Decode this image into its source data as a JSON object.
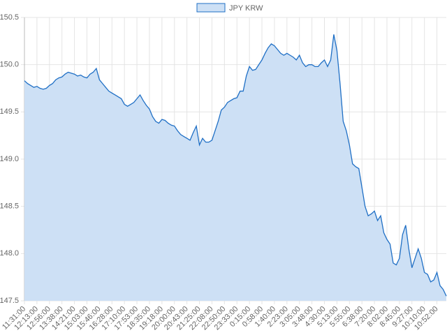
{
  "chart_data": {
    "type": "line",
    "fill_area": true,
    "grid": true,
    "legend": "top",
    "categories": [
      "11:31:00",
      null,
      null,
      null,
      "12:13:00",
      null,
      null,
      null,
      "12:56:00",
      null,
      null,
      null,
      "13:38:00",
      null,
      null,
      null,
      "14:21:00",
      null,
      null,
      null,
      "15:03:00",
      null,
      null,
      null,
      "15:46:00",
      null,
      null,
      null,
      "16:28:00",
      null,
      null,
      null,
      "17:10:00",
      null,
      null,
      null,
      "17:53:00",
      null,
      null,
      null,
      "18:35:00",
      null,
      null,
      null,
      "19:18:00",
      null,
      null,
      null,
      "20:00:00",
      null,
      null,
      null,
      "20:43:00",
      null,
      null,
      null,
      "21:25:00",
      null,
      null,
      null,
      "22:08:00",
      null,
      null,
      null,
      "22:50:00",
      null,
      null,
      null,
      "23:33:00",
      null,
      null,
      null,
      "0:15:00",
      null,
      null,
      null,
      "0:58:00",
      null,
      null,
      null,
      "1:40:00",
      null,
      null,
      null,
      "2:23:00",
      null,
      null,
      null,
      "3:05:00",
      null,
      null,
      null,
      "3:48:00",
      null,
      null,
      null,
      "4:30:00",
      null,
      null,
      null,
      "5:13:00",
      null,
      null,
      null,
      "5:55:00",
      null,
      null,
      null,
      "6:38:00",
      null,
      null,
      null,
      "7:20:00",
      null,
      null,
      null,
      "8:02:00",
      null,
      null,
      null,
      "8:45:00",
      null,
      null,
      null,
      "9:27:00",
      null,
      null,
      null,
      "10:10:00",
      null,
      null,
      null,
      "10:52:00",
      null,
      null,
      null
    ],
    "series": [
      {
        "name": "JPY KRW",
        "color": "#1f6fc5",
        "fill": "#cde0f5",
        "values": [
          149.83,
          149.8,
          149.78,
          149.76,
          149.77,
          149.75,
          149.74,
          149.75,
          149.78,
          149.8,
          149.84,
          149.86,
          149.87,
          149.9,
          149.92,
          149.91,
          149.9,
          149.88,
          149.89,
          149.87,
          149.86,
          149.9,
          149.92,
          149.96,
          149.84,
          149.8,
          149.76,
          149.72,
          149.7,
          149.68,
          149.66,
          149.64,
          149.58,
          149.56,
          149.58,
          149.6,
          149.64,
          149.68,
          149.62,
          149.57,
          149.53,
          149.45,
          149.4,
          149.38,
          149.42,
          149.41,
          149.38,
          149.36,
          149.35,
          149.3,
          149.26,
          149.24,
          149.22,
          149.2,
          149.28,
          149.35,
          149.15,
          149.22,
          149.18,
          149.18,
          149.2,
          149.3,
          149.4,
          149.52,
          149.55,
          149.6,
          149.62,
          149.64,
          149.65,
          149.72,
          149.72,
          149.88,
          149.98,
          149.94,
          149.95,
          150.0,
          150.05,
          150.12,
          150.18,
          150.22,
          150.2,
          150.16,
          150.12,
          150.1,
          150.12,
          150.1,
          150.08,
          150.05,
          150.1,
          150.02,
          149.98,
          150.0,
          150.0,
          149.98,
          149.98,
          150.02,
          150.05,
          149.98,
          150.05,
          150.32,
          150.15,
          149.8,
          149.4,
          149.3,
          149.15,
          148.95,
          148.92,
          148.9,
          148.7,
          148.5,
          148.4,
          148.42,
          148.45,
          148.35,
          148.4,
          148.22,
          148.15,
          148.1,
          147.9,
          147.88,
          147.95,
          148.2,
          148.3,
          148.05,
          147.85,
          147.95,
          148.05,
          147.95,
          147.8,
          147.78,
          147.7,
          147.72,
          147.8,
          147.66,
          147.62,
          147.55
        ]
      }
    ],
    "ylim": [
      147.5,
      150.5
    ],
    "yticks": [
      {
        "value": 147.5,
        "label": "147.5"
      },
      {
        "value": 148,
        "label": "148.0"
      },
      {
        "value": 148.5,
        "label": "148.5"
      },
      {
        "value": 149,
        "label": "149.0"
      },
      {
        "value": 149.5,
        "label": "149.5"
      },
      {
        "value": 150,
        "label": "150.0"
      },
      {
        "value": 150.5,
        "label": "150.5"
      }
    ]
  }
}
